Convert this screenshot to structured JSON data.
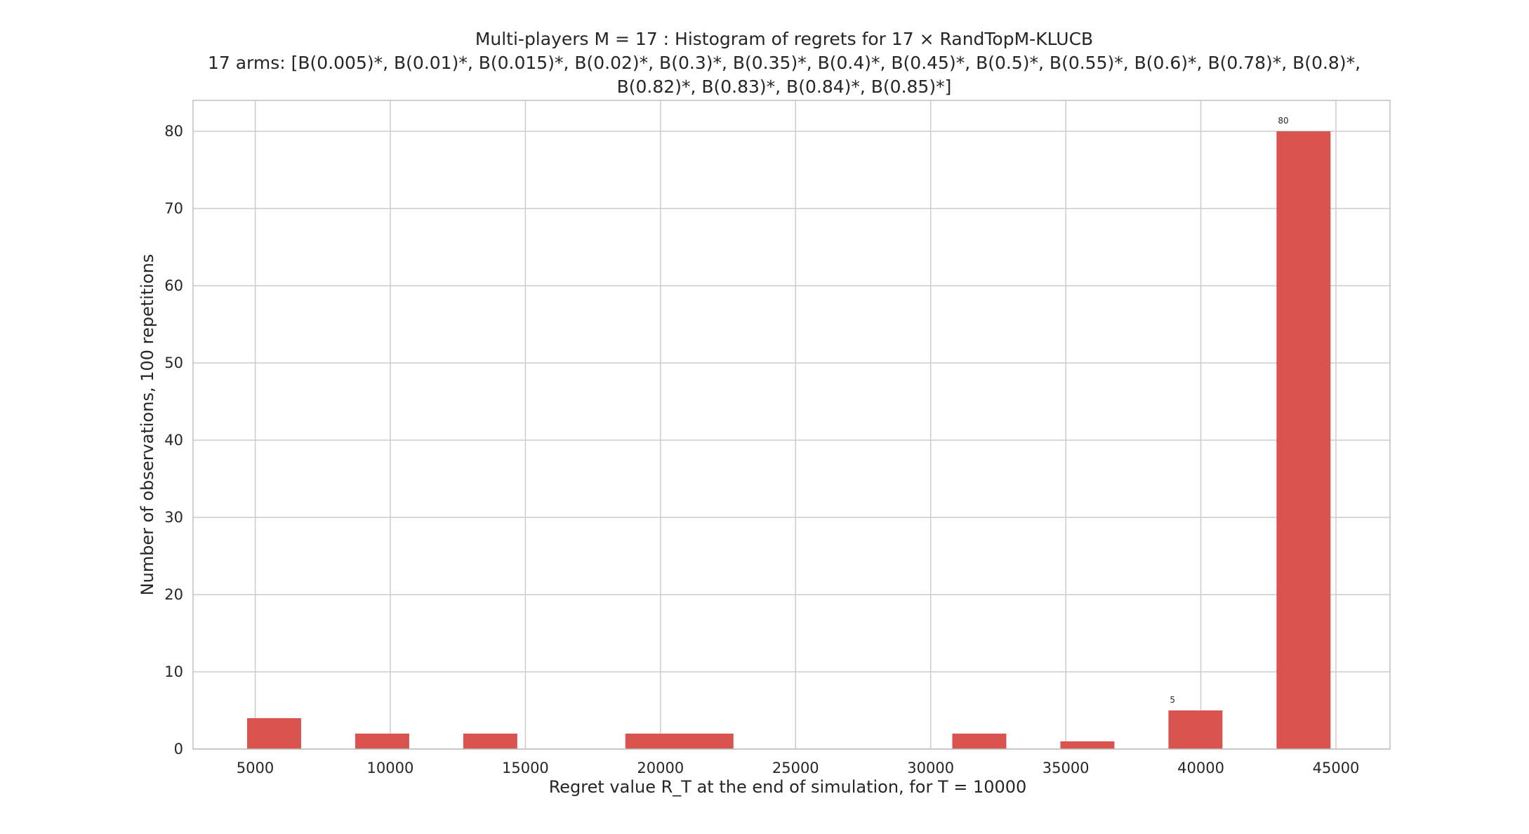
{
  "chart_data": {
    "type": "bar",
    "title_line1": "Multi-players M = 17 : Histogram of regrets for 17 ×  RandTopM-KLUCB",
    "title_line2": "17 arms: [B(0.005)*, B(0.01)*, B(0.015)*, B(0.02)*, B(0.3)*, B(0.35)*, B(0.4)*, B(0.45)*, B(0.5)*, B(0.55)*, B(0.6)*, B(0.78)*, B(0.8)*,",
    "title_line3": "B(0.82)*, B(0.83)*, B(0.84)*, B(0.85)*]",
    "xlabel": "Regret value R_T at the end of simulation, for T = 10000",
    "ylabel": "Number of observations, 100 repetitions",
    "xlim": [
      2700,
      47000
    ],
    "ylim": [
      0,
      84
    ],
    "x_ticks": [
      5000,
      10000,
      15000,
      20000,
      25000,
      30000,
      35000,
      40000,
      45000
    ],
    "y_ticks": [
      0,
      10,
      20,
      30,
      40,
      50,
      60,
      70,
      80
    ],
    "grid": true,
    "bar_color": "#d9534f",
    "bins": [
      {
        "x0": 4700,
        "x1": 6700,
        "value": 4
      },
      {
        "x0": 8700,
        "x1": 10700,
        "value": 2
      },
      {
        "x0": 12700,
        "x1": 14700,
        "value": 2
      },
      {
        "x0": 18700,
        "x1": 22700,
        "value": 2
      },
      {
        "x0": 30800,
        "x1": 32800,
        "value": 2
      },
      {
        "x0": 34800,
        "x1": 36800,
        "value": 1
      },
      {
        "x0": 38800,
        "x1": 40800,
        "value": 5,
        "label": "5"
      },
      {
        "x0": 42800,
        "x1": 44800,
        "value": 80,
        "label": "80"
      }
    ]
  }
}
